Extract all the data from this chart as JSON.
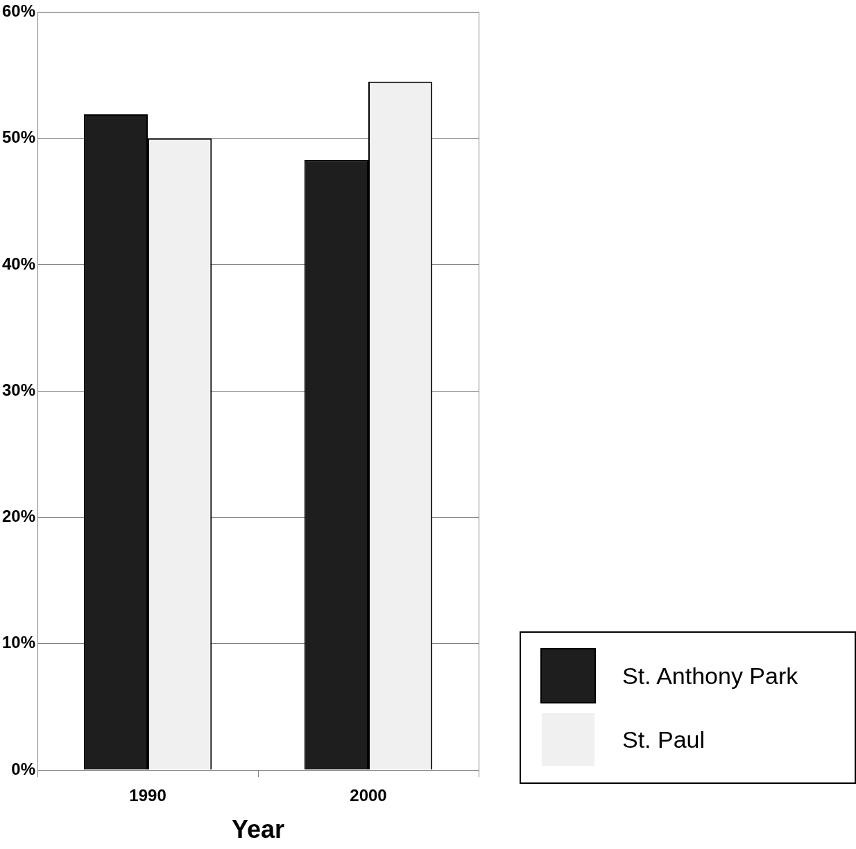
{
  "chart_data": {
    "type": "bar",
    "xlabel": "Year",
    "categories": [
      "1990",
      "2000"
    ],
    "series": [
      {
        "name": "St. Anthony Park",
        "color": "#1e1e1e",
        "values": [
          51.9,
          48.3
        ]
      },
      {
        "name": "St. Paul",
        "color": "#f0f0f0",
        "values": [
          50.0,
          54.5
        ]
      }
    ],
    "ylim": [
      0,
      60
    ],
    "yticks": [
      {
        "value": 0,
        "label": "0%"
      },
      {
        "value": 10,
        "label": "10%"
      },
      {
        "value": 20,
        "label": "20%"
      },
      {
        "value": 30,
        "label": "30%"
      },
      {
        "value": 40,
        "label": "40%"
      },
      {
        "value": 50,
        "label": "50%"
      },
      {
        "value": 60,
        "label": "60%"
      }
    ],
    "grid": "y",
    "legend": "bottom right"
  }
}
